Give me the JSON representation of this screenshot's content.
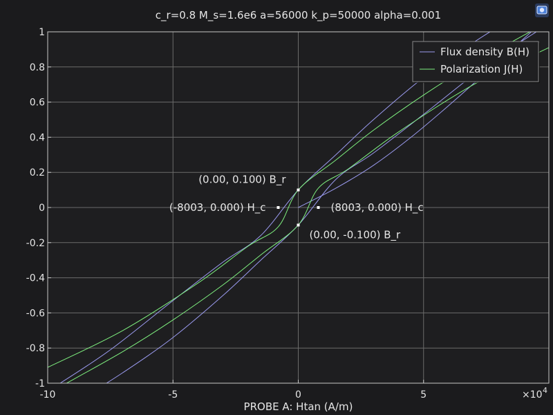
{
  "chart_data": {
    "type": "line",
    "title": "c_r=0.8 M_s=1.6e6 a=56000 k_p=50000 alpha=0.001",
    "xlabel": "PROBE A: Htan (A/m)",
    "ylabel": "",
    "x_exponent_label": "×10",
    "x_exponent_power": "4",
    "xlim": [
      -10,
      10
    ],
    "ylim": [
      -1,
      1
    ],
    "x_unit_scale": 10000,
    "x_ticks": [
      -10,
      -5,
      0,
      5
    ],
    "x_tick_labels": [
      "-10",
      "-5",
      "0",
      "5"
    ],
    "y_ticks": [
      -1,
      -0.8,
      -0.6,
      -0.4,
      -0.2,
      0,
      0.2,
      0.4,
      0.6,
      0.8,
      1
    ],
    "y_tick_labels": [
      "-1",
      "-0.8",
      "-0.6",
      "-0.4",
      "-0.2",
      "0",
      "0.2",
      "0.4",
      "0.6",
      "0.8",
      "1"
    ],
    "grid": true,
    "legend_position": "top-right",
    "series": [
      {
        "name": "Flux density B(H)",
        "color": "#9b9bf0",
        "branches": [
          {
            "x": [
              0,
              1.5,
              3,
              4.5,
              6,
              7.5,
              9.3
            ],
            "y": [
              0,
              0.11,
              0.24,
              0.4,
              0.58,
              0.77,
              1.0
            ]
          },
          {
            "x": [
              -9.5,
              -7.5,
              -5.0,
              -3.0,
              -1.5,
              0,
              1.5,
              3.0,
              5.0,
              7.0,
              9.0
            ],
            "y": [
              -1.0,
              -0.81,
              -0.53,
              -0.31,
              -0.16,
              0.1,
              0.3,
              0.5,
              0.74,
              0.94,
              1.12
            ]
          },
          {
            "x": [
              -9.0,
              -7.0,
              -5.0,
              -3.0,
              -1.5,
              0,
              1.5,
              3.0,
              5.0,
              7.5,
              9.5
            ],
            "y": [
              -1.12,
              -0.94,
              -0.74,
              -0.5,
              -0.3,
              -0.1,
              0.16,
              0.31,
              0.53,
              0.81,
              1.0
            ]
          }
        ]
      },
      {
        "name": "Polarization J(H)",
        "color": "#7ff07f",
        "branches": [
          {
            "x": [
              -10.0,
              -7.0,
              -4.0,
              -2.0,
              -0.8,
              0,
              1.5,
              3.0,
              5.0,
              7.0,
              9.5
            ],
            "y": [
              -0.91,
              -0.7,
              -0.43,
              -0.22,
              -0.11,
              0.1,
              0.27,
              0.44,
              0.64,
              0.82,
              1.02
            ]
          },
          {
            "x": [
              -9.5,
              -7.0,
              -5.0,
              -3.0,
              -1.5,
              0,
              0.8,
              2.0,
              4.0,
              7.0,
              10.0
            ],
            "y": [
              -1.02,
              -0.82,
              -0.64,
              -0.44,
              -0.27,
              -0.1,
              0.11,
              0.22,
              0.43,
              0.7,
              0.91
            ]
          }
        ]
      }
    ],
    "annotations": [
      {
        "x": 0,
        "y": 0.1,
        "label": "(0.00, 0.100) B_r",
        "anchor": "end",
        "dx": -18,
        "dy": -10
      },
      {
        "x": -0.8003,
        "y": 0,
        "label": "(-8003, 0.000) H_c",
        "anchor": "end",
        "dx": -18,
        "dy": 5
      },
      {
        "x": 0.8003,
        "y": 0,
        "label": "(8003, 0.000) H_c",
        "anchor": "start",
        "dx": 18,
        "dy": 5
      },
      {
        "x": 0,
        "y": -0.1,
        "label": "(0.00, -0.100) B_r",
        "anchor": "start",
        "dx": 16,
        "dy": 19
      }
    ]
  },
  "toolbar": {
    "icon": "camera-icon"
  }
}
